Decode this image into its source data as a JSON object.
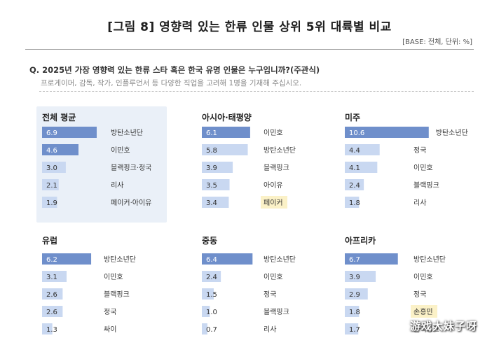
{
  "header": {
    "title": "[그림 8] 영향력 있는 한류 인물 상위 5위 대륙별 비교",
    "base": "[BASE: 전체, 단위: %]",
    "question": "Q. 2025년 가장 영향력 있는 한류 스타 혹은 한국 유명 인물은 누구입니까?(주관식)",
    "instruction": "프로게이머, 감독, 작가, 인플루언서 등 다양한 직업을 고려해 1명을 기재해 주십시오."
  },
  "colors": {
    "bar_dark": "#6f8fcb",
    "bar_light": "#c9d8f1",
    "value_text_on_dark": "#ffffff",
    "value_text_on_light": "#333333",
    "highlight_label_bg": "#fbf1c7",
    "panel_highlight_bg": "#eaf0f8"
  },
  "watermark": "游戏大妹子呀",
  "chart_data": [
    {
      "type": "bar",
      "orientation": "horizontal",
      "title": "전체 평균",
      "unit": "%",
      "highlighted_panel": true,
      "categories": [
        "방탄소년단",
        "이민호",
        "블랙핑크·정국",
        "리사",
        "페이커·아이유"
      ],
      "values": [
        6.9,
        4.6,
        3.0,
        2.1,
        1.9
      ],
      "highlight": [
        false,
        false,
        false,
        false,
        false
      ]
    },
    {
      "type": "bar",
      "orientation": "horizontal",
      "title": "아시아·태평양",
      "unit": "%",
      "categories": [
        "이민호",
        "방탄소년단",
        "블랙핑크",
        "아이유",
        "페이커"
      ],
      "values": [
        6.1,
        5.8,
        3.9,
        3.5,
        3.4
      ],
      "highlight": [
        false,
        false,
        false,
        false,
        true
      ]
    },
    {
      "type": "bar",
      "orientation": "horizontal",
      "title": "미주",
      "unit": "%",
      "categories": [
        "방탄소년단",
        "정국",
        "이민호",
        "블랙핑크",
        "리사"
      ],
      "values": [
        10.6,
        4.4,
        4.1,
        2.4,
        1.8
      ],
      "highlight": [
        false,
        false,
        false,
        false,
        false
      ]
    },
    {
      "type": "bar",
      "orientation": "horizontal",
      "title": "유럽",
      "unit": "%",
      "categories": [
        "방탄소년단",
        "이민호",
        "블랙핑크",
        "정국",
        "싸이"
      ],
      "values": [
        6.2,
        3.1,
        2.6,
        2.6,
        1.3
      ],
      "highlight": [
        false,
        false,
        false,
        false,
        false
      ]
    },
    {
      "type": "bar",
      "orientation": "horizontal",
      "title": "중동",
      "unit": "%",
      "categories": [
        "방탄소년단",
        "이민호",
        "정국",
        "블랙핑크",
        "리사"
      ],
      "values": [
        6.4,
        2.4,
        1.5,
        1.0,
        0.7
      ],
      "highlight": [
        false,
        false,
        false,
        false,
        false
      ]
    },
    {
      "type": "bar",
      "orientation": "horizontal",
      "title": "아프리카",
      "unit": "%",
      "categories": [
        "방탄소년단",
        "이민호",
        "정국",
        "손흥민",
        "블랙핑크"
      ],
      "values": [
        6.7,
        3.9,
        2.9,
        1.8,
        1.7
      ],
      "highlight": [
        false,
        false,
        false,
        true,
        false
      ]
    }
  ]
}
